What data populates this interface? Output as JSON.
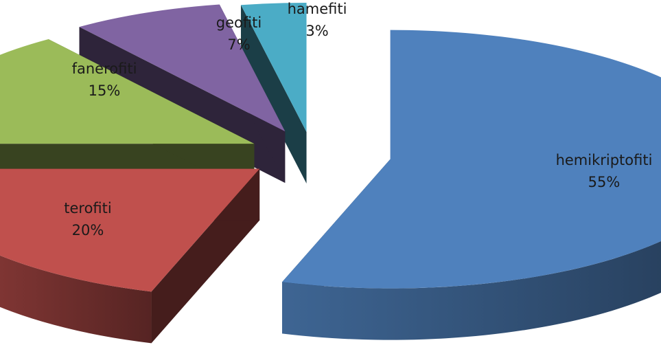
{
  "chart_data": {
    "type": "pie",
    "style": "3d-exploded",
    "categories": [
      "hemikriptofiti",
      "terofiti",
      "fanerofiti",
      "geofiti",
      "hamefiti"
    ],
    "values": [
      55,
      20,
      15,
      7,
      3
    ],
    "unit": "%",
    "labels": [
      {
        "name": "hemikriptofiti",
        "percent": "55%"
      },
      {
        "name": "terofiti",
        "percent": "20%"
      },
      {
        "name": "fanerofiti",
        "percent": "15%"
      },
      {
        "name": "geofiti",
        "percent": "7%"
      },
      {
        "name": "hamefiti",
        "percent": "3%"
      }
    ],
    "colors": [
      "#4f81bd",
      "#c0504d",
      "#9bbb59",
      "#8064a2",
      "#4bacc6"
    ],
    "legend": "none"
  }
}
